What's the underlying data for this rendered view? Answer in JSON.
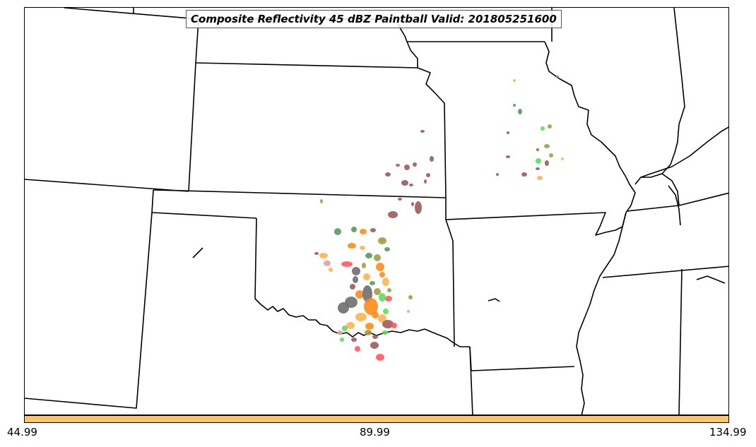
{
  "title": "Composite Reflectivity 45 dBZ Paintball Valid: 201805251600",
  "colorbar": {
    "color": "#ffc36a",
    "tick_labels": [
      "44.99",
      "89.99",
      "134.99"
    ]
  },
  "paintball_colors": [
    "#a05a5a",
    "#6e6e6e",
    "#ff8c1a",
    "#ffb450",
    "#ff5a5a",
    "#5ae05a",
    "#5a9a5a",
    "#a0a040",
    "#e0a0a0"
  ]
}
